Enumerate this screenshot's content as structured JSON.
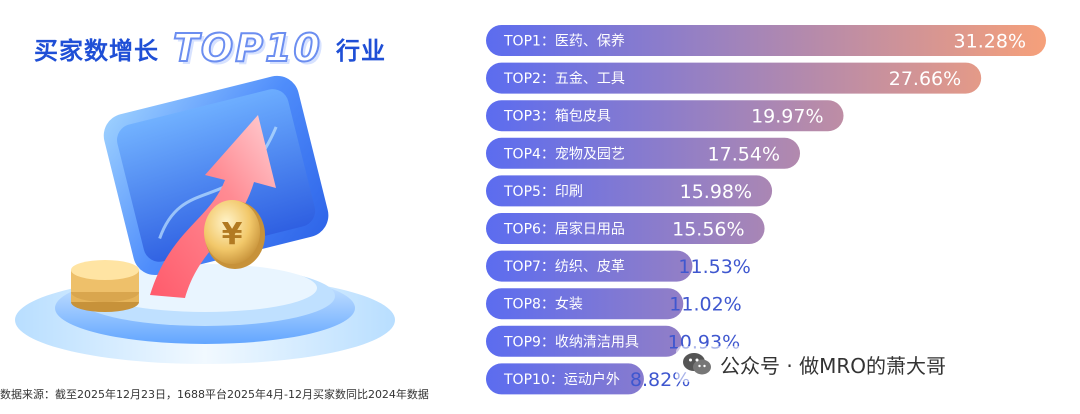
{
  "header": {
    "title_part1": "买家数增长",
    "title_part2": "TOP10",
    "title_part3": "行业"
  },
  "source_note": "数据来源：截至2025年12月23日，1688平台2025年4月-12月买家数同比2024年数据",
  "watermark": {
    "text": "公众号 · 做MRO的萧大哥",
    "icon": "wechat-icon"
  },
  "colors": {
    "bar_start": "#5b6cf0",
    "bar_end": "#f6a07a",
    "value_text": "#ffffff",
    "value_text_outside": "#3f57cf"
  },
  "chart_data": {
    "type": "bar",
    "orientation": "horizontal",
    "categories": [
      "TOP1：医药、保养",
      "TOP2：五金、工具",
      "TOP3：箱包皮具",
      "TOP4：宠物及园艺",
      "TOP5：印刷",
      "TOP6：居家日用品",
      "TOP7：纺织、皮革",
      "TOP8：女装",
      "TOP9：收纳清洁用具",
      "TOP10：运动户外"
    ],
    "values": [
      31.28,
      27.66,
      19.97,
      17.54,
      15.98,
      15.56,
      11.53,
      11.02,
      10.93,
      8.82
    ],
    "value_labels": [
      "31.28%",
      "27.66%",
      "19.97%",
      "17.54%",
      "15.98%",
      "15.56%",
      "11.53%",
      "11.02%",
      "10.93%",
      "8.82%"
    ],
    "unit": "%"
  }
}
